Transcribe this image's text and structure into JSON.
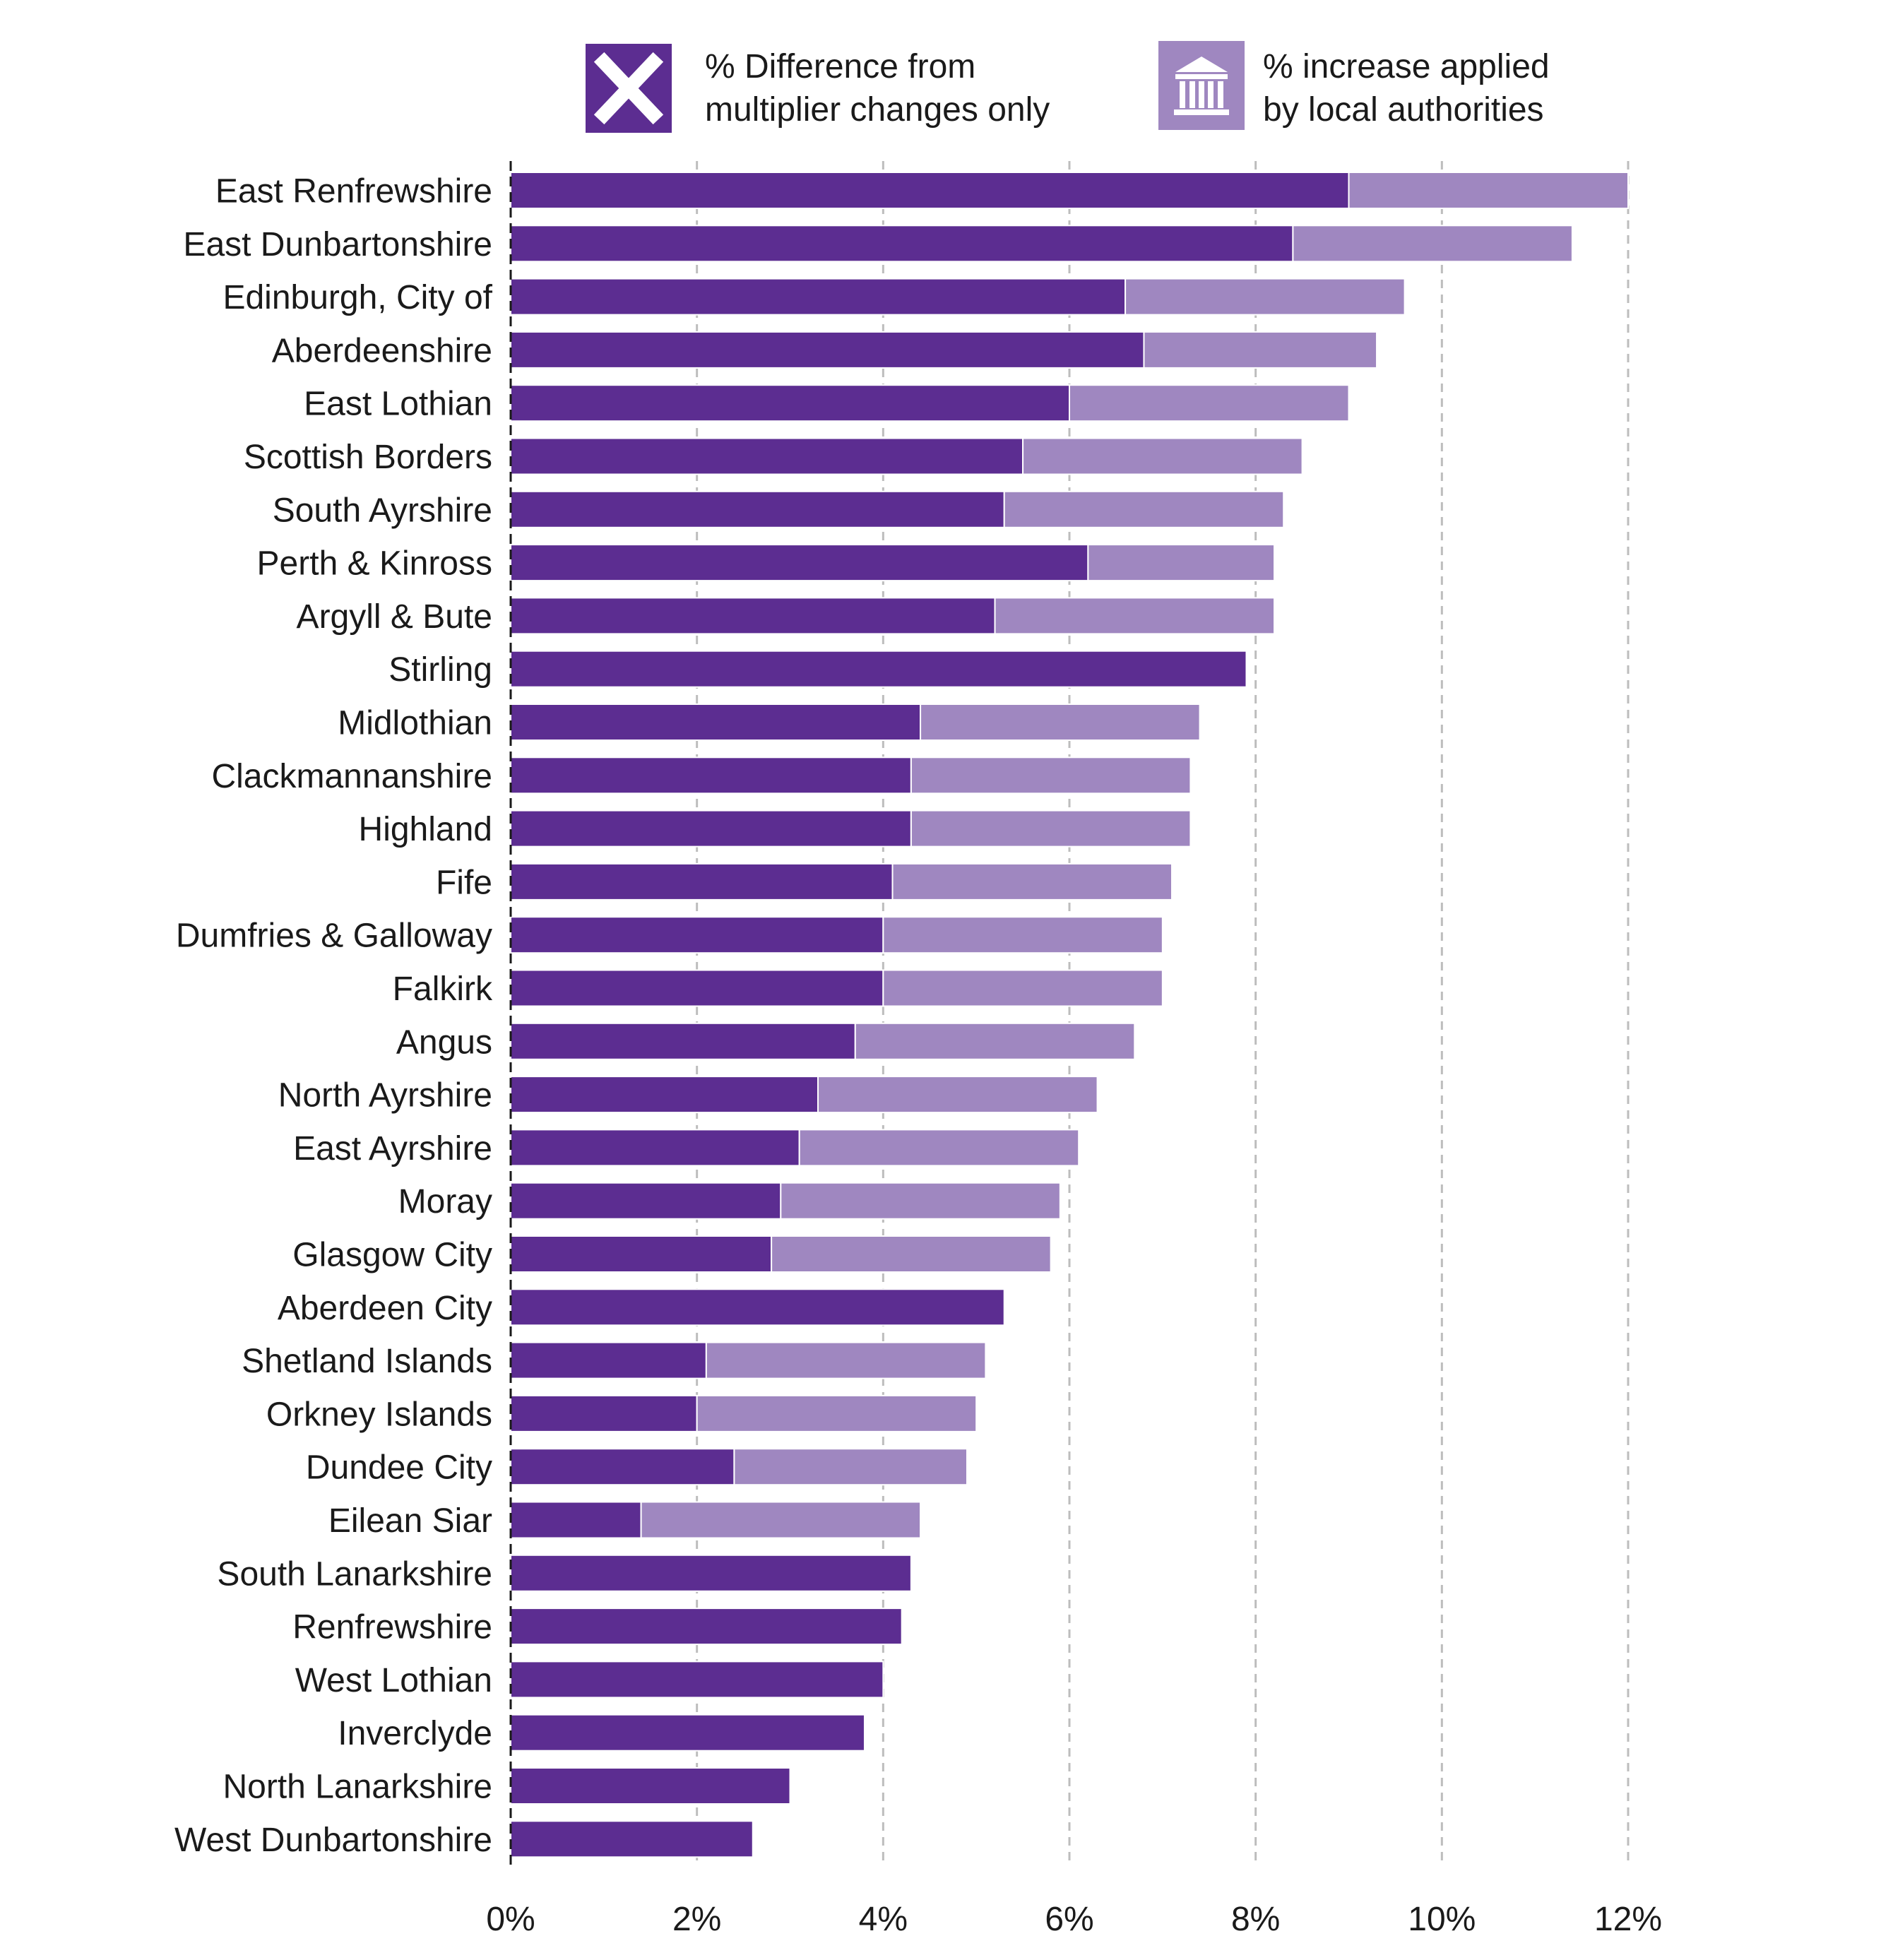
{
  "chart_data": {
    "type": "bar",
    "orientation": "horizontal",
    "stacked": true,
    "title": "",
    "xlabel": "",
    "ylabel": "",
    "xlim": [
      0,
      12
    ],
    "x_ticks": [
      "0%",
      "2%",
      "4%",
      "6%",
      "8%",
      "10%",
      "12%"
    ],
    "grid": "vertical dashed",
    "legend_position": "top",
    "categories": [
      "East Renfrewshire",
      "East Dunbartonshire",
      "Edinburgh, City of",
      "Aberdeenshire",
      "East Lothian",
      "Scottish Borders",
      "South Ayrshire",
      "Perth & Kinross",
      "Argyll & Bute",
      "Stirling",
      "Midlothian",
      "Clackmannanshire",
      "Highland",
      "Fife",
      "Dumfries & Galloway",
      "Falkirk",
      "Angus",
      "North Ayrshire",
      "East Ayrshire",
      "Moray",
      "Glasgow City",
      "Aberdeen City",
      "Shetland Islands",
      "Orkney Islands",
      "Dundee City",
      "Eilean Siar",
      "South Lanarkshire",
      "Renfrewshire",
      "West Lothian",
      "Inverclyde",
      "North Lanarkshire",
      "West Dunbartonshire"
    ],
    "series": [
      {
        "name": "% Difference from multiplier changes only",
        "legend_lines": [
          "% Difference from",
          "multiplier changes only"
        ],
        "icon": "cross-icon",
        "color": "#5c2d91",
        "values": [
          9.0,
          8.4,
          6.6,
          6.8,
          6.0,
          5.5,
          5.3,
          6.2,
          5.2,
          7.9,
          4.4,
          4.3,
          4.3,
          4.1,
          4.0,
          4.0,
          3.7,
          3.3,
          3.1,
          2.9,
          2.8,
          5.3,
          2.1,
          2.0,
          2.4,
          1.4,
          4.3,
          4.2,
          4.0,
          3.8,
          3.0,
          2.6
        ]
      },
      {
        "name": "% increase applied by local authorities",
        "legend_lines": [
          "% increase applied",
          "by local authorities"
        ],
        "icon": "institution-icon",
        "color": "#9f87c0",
        "values": [
          3.0,
          3.0,
          3.0,
          2.5,
          3.0,
          3.0,
          3.0,
          2.0,
          3.0,
          0,
          3.0,
          3.0,
          3.0,
          3.0,
          3.0,
          3.0,
          3.0,
          3.0,
          3.0,
          3.0,
          3.0,
          0,
          3.0,
          3.0,
          2.5,
          3.0,
          0,
          0,
          0,
          0,
          0,
          0
        ]
      }
    ]
  }
}
